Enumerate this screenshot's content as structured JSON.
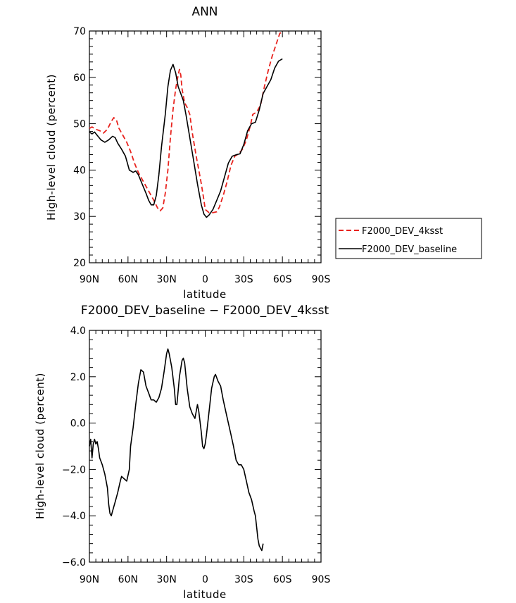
{
  "chart_data": [
    {
      "type": "line",
      "title": "ANN",
      "xlabel": "latitude",
      "ylabel": "High-level cloud (percent)",
      "xlim": [
        90,
        -90
      ],
      "ylim": [
        20,
        70
      ],
      "x_ticks": [
        {
          "value": 90,
          "label": "90N"
        },
        {
          "value": 60,
          "label": "60N"
        },
        {
          "value": 30,
          "label": "30N"
        },
        {
          "value": 0,
          "label": "0"
        },
        {
          "value": -30,
          "label": "30S"
        },
        {
          "value": -60,
          "label": "60S"
        },
        {
          "value": -90,
          "label": "90S"
        }
      ],
      "y_ticks": [
        {
          "value": 20,
          "label": "20"
        },
        {
          "value": 30,
          "label": "30"
        },
        {
          "value": 40,
          "label": "40"
        },
        {
          "value": 50,
          "label": "50"
        },
        {
          "value": 60,
          "label": "60"
        },
        {
          "value": 70,
          "label": "70"
        }
      ],
      "legend_position": "right",
      "series": [
        {
          "name": "F2000_DEV_4ksst",
          "color": "#e8231e",
          "dash": "dashed",
          "points": [
            [
              90,
              49.0
            ],
            [
              88,
              49.3
            ],
            [
              85,
              48.8
            ],
            [
              82,
              48.5
            ],
            [
              79,
              48.0
            ],
            [
              76,
              48.8
            ],
            [
              73,
              50.5
            ],
            [
              71,
              51.3
            ],
            [
              69,
              50.8
            ],
            [
              67,
              49.0
            ],
            [
              64,
              47.5
            ],
            [
              61,
              46.0
            ],
            [
              58,
              44.0
            ],
            [
              55,
              41.5
            ],
            [
              52,
              39.5
            ],
            [
              49,
              38.0
            ],
            [
              46,
              36.5
            ],
            [
              43,
              35.0
            ],
            [
              40,
              33.5
            ],
            [
              37,
              31.8
            ],
            [
              35,
              31.2
            ],
            [
              33,
              31.8
            ],
            [
              31,
              35.0
            ],
            [
              29,
              40.0
            ],
            [
              27,
              47.0
            ],
            [
              25,
              53.0
            ],
            [
              23,
              57.5
            ],
            [
              21,
              60.5
            ],
            [
              20,
              61.7
            ],
            [
              19,
              60.5
            ],
            [
              18,
              57.5
            ],
            [
              16,
              54.5
            ],
            [
              14,
              53.5
            ],
            [
              12,
              52.0
            ],
            [
              10,
              48.0
            ],
            [
              7,
              43.0
            ],
            [
              5,
              40.0
            ],
            [
              3,
              37.0
            ],
            [
              1,
              33.5
            ],
            [
              0,
              31.5
            ],
            [
              -3,
              30.8
            ],
            [
              -6,
              30.8
            ],
            [
              -9,
              31.0
            ],
            [
              -11,
              32.0
            ],
            [
              -14,
              34.5
            ],
            [
              -17,
              37.5
            ],
            [
              -20,
              41.0
            ],
            [
              -23,
              43.0
            ],
            [
              -26,
              43.5
            ],
            [
              -29,
              44.5
            ],
            [
              -32,
              46.5
            ],
            [
              -35,
              49.5
            ],
            [
              -37,
              52.0
            ],
            [
              -40,
              52.5
            ],
            [
              -43,
              54.0
            ],
            [
              -46,
              58.0
            ],
            [
              -49,
              61.5
            ],
            [
              -52,
              64.5
            ],
            [
              -55,
              67.0
            ],
            [
              -58,
              69.5
            ],
            [
              -60,
              69.8
            ]
          ]
        },
        {
          "name": "F2000_DEV_baseline",
          "color": "#000000",
          "dash": "solid",
          "points": [
            [
              90,
              48.2
            ],
            [
              88,
              47.8
            ],
            [
              86,
              48.2
            ],
            [
              84,
              47.5
            ],
            [
              81,
              46.5
            ],
            [
              78,
              46.0
            ],
            [
              75,
              46.5
            ],
            [
              72,
              47.3
            ],
            [
              70,
              47.0
            ],
            [
              68,
              45.8
            ],
            [
              65,
              44.5
            ],
            [
              62,
              43.0
            ],
            [
              59,
              40.0
            ],
            [
              56,
              39.5
            ],
            [
              54,
              39.8
            ],
            [
              52,
              39.0
            ],
            [
              49,
              37.0
            ],
            [
              46,
              35.0
            ],
            [
              44,
              33.5
            ],
            [
              42,
              32.5
            ],
            [
              40,
              32.5
            ],
            [
              38,
              34.5
            ],
            [
              36,
              39.0
            ],
            [
              34,
              45.0
            ],
            [
              31,
              52.0
            ],
            [
              29,
              58.0
            ],
            [
              27,
              61.5
            ],
            [
              25,
              62.8
            ],
            [
              23,
              61.0
            ],
            [
              21,
              58.0
            ],
            [
              19,
              56.5
            ],
            [
              17,
              55.0
            ],
            [
              15,
              52.0
            ],
            [
              12,
              47.0
            ],
            [
              9,
              42.0
            ],
            [
              6,
              37.0
            ],
            [
              3,
              32.5
            ],
            [
              1,
              30.5
            ],
            [
              -1,
              29.8
            ],
            [
              -3,
              30.3
            ],
            [
              -6,
              31.5
            ],
            [
              -9,
              33.5
            ],
            [
              -12,
              35.5
            ],
            [
              -15,
              38.5
            ],
            [
              -18,
              41.5
            ],
            [
              -21,
              43.0
            ],
            [
              -24,
              43.3
            ],
            [
              -27,
              43.5
            ],
            [
              -30,
              45.5
            ],
            [
              -33,
              48.5
            ],
            [
              -36,
              50.0
            ],
            [
              -39,
              50.3
            ],
            [
              -42,
              53.0
            ],
            [
              -45,
              56.5
            ],
            [
              -48,
              58.0
            ],
            [
              -51,
              59.5
            ],
            [
              -54,
              62.0
            ],
            [
              -57,
              63.5
            ],
            [
              -60,
              64.0
            ]
          ]
        }
      ]
    },
    {
      "type": "line",
      "title": "F2000_DEV_baseline − F2000_DEV_4ksst",
      "xlabel": "latitude",
      "ylabel": "High-level cloud (percent)",
      "xlim": [
        90,
        -90
      ],
      "ylim": [
        -6.0,
        4.0
      ],
      "x_ticks": [
        {
          "value": 90,
          "label": "90N"
        },
        {
          "value": 60,
          "label": "60N"
        },
        {
          "value": 30,
          "label": "30N"
        },
        {
          "value": 0,
          "label": "0"
        },
        {
          "value": -30,
          "label": "30S"
        },
        {
          "value": -60,
          "label": "60S"
        },
        {
          "value": -90,
          "label": "90S"
        }
      ],
      "y_ticks": [
        {
          "value": -6.0,
          "label": "−6.0"
        },
        {
          "value": -4.0,
          "label": "−4.0"
        },
        {
          "value": -2.0,
          "label": "−2.0"
        },
        {
          "value": 0.0,
          "label": "0.0"
        },
        {
          "value": 2.0,
          "label": "2.0"
        },
        {
          "value": 4.0,
          "label": "4.0"
        }
      ],
      "series": [
        {
          "name": "",
          "color": "#000000",
          "dash": "solid",
          "points": [
            [
              90,
              -1.0
            ],
            [
              89,
              -0.7
            ],
            [
              88,
              -1.5
            ],
            [
              87,
              -0.9
            ],
            [
              86,
              -0.7
            ],
            [
              85,
              -0.9
            ],
            [
              84,
              -0.8
            ],
            [
              83,
              -1.1
            ],
            [
              82,
              -1.5
            ],
            [
              80,
              -1.8
            ],
            [
              78,
              -2.2
            ],
            [
              76,
              -2.8
            ],
            [
              75,
              -3.5
            ],
            [
              74,
              -3.9
            ],
            [
              73,
              -4.0
            ],
            [
              72,
              -3.8
            ],
            [
              70,
              -3.4
            ],
            [
              68,
              -3.0
            ],
            [
              66,
              -2.5
            ],
            [
              65,
              -2.3
            ],
            [
              63,
              -2.4
            ],
            [
              61,
              -2.5
            ],
            [
              59,
              -2.0
            ],
            [
              58,
              -1.0
            ],
            [
              56,
              -0.2
            ],
            [
              54,
              0.8
            ],
            [
              52,
              1.7
            ],
            [
              50,
              2.3
            ],
            [
              48,
              2.2
            ],
            [
              46,
              1.6
            ],
            [
              44,
              1.3
            ],
            [
              42,
              1.0
            ],
            [
              40,
              1.0
            ],
            [
              38,
              0.9
            ],
            [
              36,
              1.1
            ],
            [
              34,
              1.5
            ],
            [
              32,
              2.2
            ],
            [
              30,
              3.0
            ],
            [
              29,
              3.2
            ],
            [
              28,
              3.0
            ],
            [
              26,
              2.4
            ],
            [
              24,
              1.5
            ],
            [
              23,
              0.8
            ],
            [
              22,
              0.8
            ],
            [
              20,
              2.0
            ],
            [
              18,
              2.7
            ],
            [
              17,
              2.8
            ],
            [
              16,
              2.6
            ],
            [
              14,
              1.5
            ],
            [
              12,
              0.7
            ],
            [
              10,
              0.4
            ],
            [
              8,
              0.2
            ],
            [
              7,
              0.5
            ],
            [
              6,
              0.8
            ],
            [
              5,
              0.5
            ],
            [
              3,
              -0.4
            ],
            [
              2,
              -1.0
            ],
            [
              1,
              -1.1
            ],
            [
              0,
              -0.9
            ],
            [
              -1,
              -0.5
            ],
            [
              -3,
              0.5
            ],
            [
              -5,
              1.5
            ],
            [
              -7,
              2.0
            ],
            [
              -8,
              2.1
            ],
            [
              -10,
              1.8
            ],
            [
              -12,
              1.6
            ],
            [
              -14,
              1.0
            ],
            [
              -16,
              0.5
            ],
            [
              -18,
              0.0
            ],
            [
              -20,
              -0.5
            ],
            [
              -22,
              -1.0
            ],
            [
              -24,
              -1.6
            ],
            [
              -26,
              -1.8
            ],
            [
              -28,
              -1.8
            ],
            [
              -30,
              -2.0
            ],
            [
              -32,
              -2.5
            ],
            [
              -34,
              -3.0
            ],
            [
              -36,
              -3.3
            ],
            [
              -38,
              -3.8
            ],
            [
              -39,
              -4.0
            ],
            [
              -40,
              -4.5
            ],
            [
              -41,
              -5.0
            ],
            [
              -42,
              -5.3
            ],
            [
              -43,
              -5.4
            ],
            [
              -44,
              -5.5
            ],
            [
              -45,
              -5.2
            ]
          ]
        }
      ]
    }
  ]
}
